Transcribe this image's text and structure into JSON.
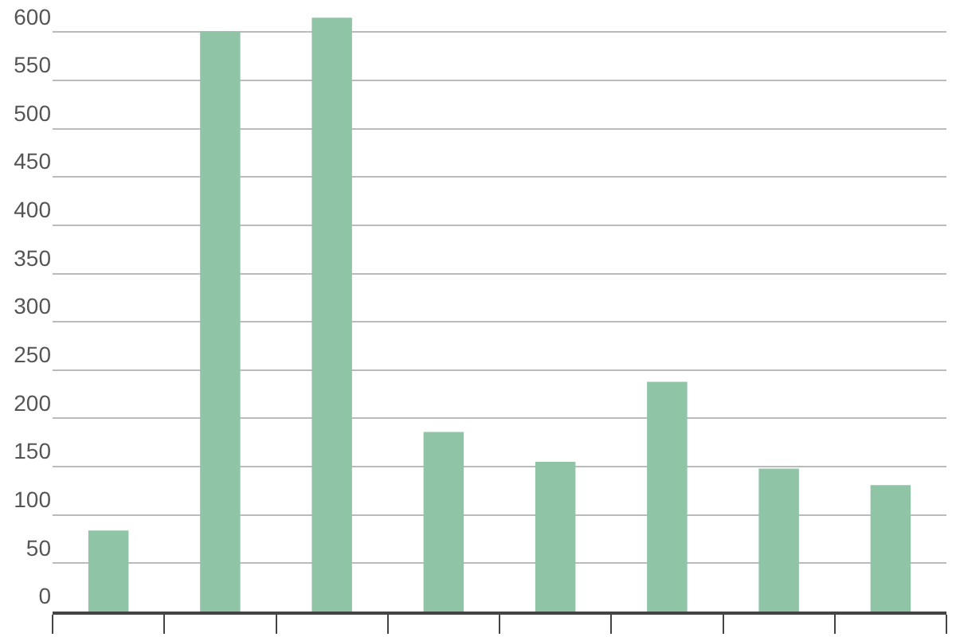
{
  "chart_data": {
    "type": "bar",
    "categories": [
      null,
      null,
      null,
      null,
      null,
      null,
      null,
      null
    ],
    "values": [
      84,
      601,
      615,
      186,
      155,
      238,
      148,
      131
    ],
    "color": "#8fc4a6",
    "ylim": [
      0,
      630
    ],
    "yticks": [
      0,
      50,
      100,
      150,
      200,
      250,
      300,
      350,
      400,
      450,
      500,
      550,
      600
    ],
    "grid": "y"
  }
}
